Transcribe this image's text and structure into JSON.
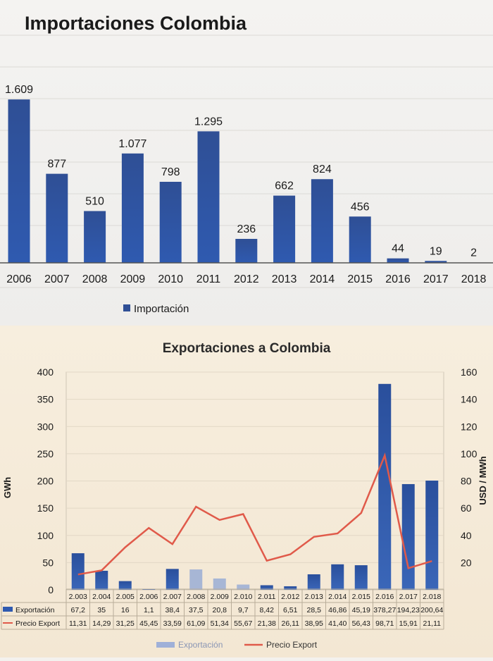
{
  "colors": {
    "bar_top": "#2f4f95",
    "bar_bottom": "#2f5ab0",
    "price_line": "#e05a4a",
    "text": "#1a1a1a"
  },
  "chart_data": [
    {
      "type": "bar",
      "title": "Importaciones Colombia",
      "categories": [
        "2006",
        "2007",
        "2008",
        "2009",
        "2010",
        "2011",
        "2012",
        "2013",
        "2014",
        "2015",
        "2016",
        "2017",
        "2018"
      ],
      "series": [
        {
          "name": "Importación",
          "values": [
            1609,
            877,
            510,
            1077,
            798,
            1295,
            236,
            662,
            824,
            456,
            44,
            19,
            2
          ],
          "labels": [
            "1.609",
            "877",
            "510",
            "1.077",
            "798",
            "1.295",
            "236",
            "662",
            "824",
            "456",
            "44",
            "19",
            "2"
          ]
        }
      ],
      "ylim": [
        0,
        1700
      ],
      "legend": "bottom"
    },
    {
      "type": "bar",
      "title": "Exportaciones a Colombia",
      "categories": [
        "2.003",
        "2.004",
        "2.005",
        "2.006",
        "2.007",
        "2.008",
        "2.009",
        "2.010",
        "2.011",
        "2.012",
        "2.013",
        "2.014",
        "2.015",
        "2.016",
        "2.017",
        "2.018"
      ],
      "ylabel": "GWh",
      "y2label": "USD / MWh",
      "ylim": [
        0,
        400
      ],
      "y2lim": [
        0,
        160
      ],
      "yticks": [
        0,
        50,
        100,
        150,
        200,
        250,
        300,
        350,
        400
      ],
      "y2ticks": [
        20,
        40,
        60,
        80,
        100,
        120,
        140,
        160
      ],
      "series": [
        {
          "name": "Exportación",
          "type": "bar",
          "axis": "left",
          "values": [
            67.2,
            35,
            16,
            1.1,
            38.4,
            37.5,
            20.8,
            9.7,
            8.42,
            6.51,
            28.5,
            46.86,
            45.19,
            378.27,
            194.23,
            200.64
          ],
          "labels": [
            "67,2",
            "35",
            "16",
            "1,1",
            "38,4",
            "37,5",
            "20,8",
            "9,7",
            "8,42",
            "6,51",
            "28,5",
            "46,86",
            "45,19",
            "378,27",
            "194,23",
            "200,64"
          ]
        },
        {
          "name": "Precio Export",
          "type": "line",
          "axis": "right",
          "values": [
            11.31,
            14.29,
            31.25,
            45.45,
            33.59,
            61.09,
            51.34,
            55.67,
            21.38,
            26.11,
            38.95,
            41.4,
            56.43,
            98.71,
            15.91,
            21.11
          ],
          "labels": [
            "11,31",
            "14,29",
            "31,25",
            "45,45",
            "33,59",
            "61,09",
            "51,34",
            "55,67",
            "21,38",
            "26,11",
            "38,95",
            "41,40",
            "56,43",
            "98,71",
            "15,91",
            "21,11"
          ]
        }
      ],
      "legend": "bottom",
      "data_table": true
    }
  ]
}
